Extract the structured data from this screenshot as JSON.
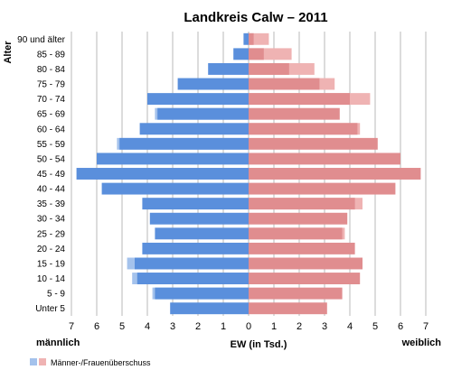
{
  "chart_data": {
    "type": "bar",
    "title": "Landkreis Calw – 2011",
    "ylabel": "Alter",
    "xlabel": "EW (in Tsd.)",
    "left_label": "männlich",
    "right_label": "weiblich",
    "legend": [
      {
        "name": "Männer-/Frauenüberschuss",
        "colors": [
          "#a4c2ec",
          "#efb3b3"
        ]
      }
    ],
    "legend_position": "bottom-left",
    "xlim": [
      -7,
      7
    ],
    "xticks": [
      "7",
      "6",
      "5",
      "4",
      "3",
      "2",
      "1",
      "0",
      "1",
      "2",
      "3",
      "4",
      "5",
      "6",
      "7"
    ],
    "grid": true,
    "categories": [
      "90 und älter",
      "85 - 89",
      "80 - 84",
      "75 - 79",
      "70 - 74",
      "65 - 69",
      "60 - 64",
      "55 - 59",
      "50 - 54",
      "45 - 49",
      "40 - 44",
      "35 - 39",
      "30 - 34",
      "25 - 29",
      "20 - 24",
      "15 - 19",
      "10 - 14",
      "5 - 9",
      "Unter 5"
    ],
    "series": [
      {
        "name": "männlich",
        "values": [
          0.2,
          0.6,
          1.6,
          2.8,
          4.0,
          3.7,
          4.3,
          5.2,
          6.0,
          6.8,
          5.8,
          4.2,
          3.9,
          3.7,
          4.2,
          4.8,
          4.6,
          3.8,
          3.1
        ]
      },
      {
        "name": "weiblich",
        "values": [
          0.8,
          1.7,
          2.6,
          3.4,
          4.8,
          3.6,
          4.4,
          5.1,
          6.0,
          6.8,
          5.8,
          4.5,
          3.9,
          3.8,
          4.2,
          4.5,
          4.4,
          3.7,
          3.1
        ]
      }
    ],
    "colors": {
      "male": "#5a8fdc",
      "male_surplus": "#a4c2ec",
      "female": "#e08d8f",
      "female_surplus": "#efb3b3",
      "grid": "#b8b8b8"
    }
  }
}
